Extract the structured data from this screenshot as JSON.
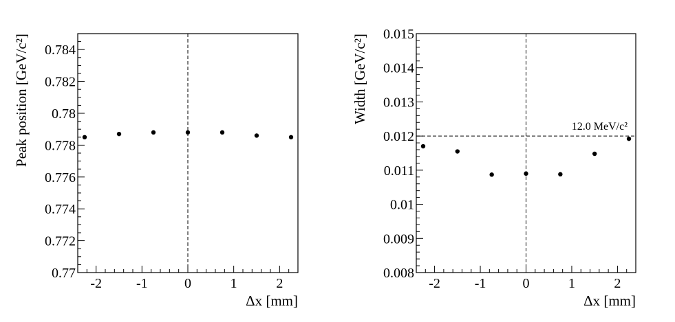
{
  "chart_data": [
    {
      "type": "scatter",
      "title": "",
      "xlabel": "Δx [mm]",
      "ylabel": "Peak position [GeV/c²]",
      "xlim": [
        -2.4,
        2.4
      ],
      "ylim": [
        0.77,
        0.785
      ],
      "x_ticks": [
        -2,
        -1,
        0,
        1,
        2
      ],
      "x_tick_labels": [
        "-2",
        "-1",
        "0",
        "1",
        "2"
      ],
      "y_ticks": [
        0.77,
        0.772,
        0.774,
        0.776,
        0.778,
        0.78,
        0.782,
        0.784
      ],
      "y_tick_labels": [
        "0.77",
        "0.772",
        "0.774",
        "0.776",
        "0.778",
        "0.78",
        "0.782",
        "0.784"
      ],
      "x_minor_step": 0.2,
      "y_minor_step": 0.0005,
      "grid": false,
      "series": [
        {
          "x": [
            -2.25,
            -1.5,
            -0.75,
            0,
            0.75,
            1.5,
            2.25
          ],
          "y": [
            0.7785,
            0.7787,
            0.7788,
            0.7788,
            0.7788,
            0.7786,
            0.7785
          ],
          "yerr": [
            3e-05,
            3e-05,
            3e-05,
            3e-05,
            3e-05,
            3e-05,
            3e-05
          ]
        }
      ],
      "reference_lines": [
        {
          "orientation": "vertical",
          "value": 0,
          "style": "dashed"
        }
      ]
    },
    {
      "type": "scatter",
      "title": "",
      "xlabel": "Δx [mm]",
      "ylabel": "Width [GeV/c²]",
      "xlim": [
        -2.4,
        2.4
      ],
      "ylim": [
        0.008,
        0.015
      ],
      "x_ticks": [
        -2,
        -1,
        0,
        1,
        2
      ],
      "x_tick_labels": [
        "-2",
        "-1",
        "0",
        "1",
        "2"
      ],
      "y_ticks": [
        0.008,
        0.009,
        0.01,
        0.011,
        0.012,
        0.013,
        0.014,
        0.015
      ],
      "y_tick_labels": [
        "0.008",
        "0.009",
        "0.01",
        "0.011",
        "0.012",
        "0.013",
        "0.014",
        "0.015"
      ],
      "x_minor_step": 0.2,
      "y_minor_step": 0.0002,
      "grid": false,
      "series": [
        {
          "x": [
            -2.25,
            -1.5,
            -0.75,
            0,
            0.75,
            1.5,
            2.25
          ],
          "y": [
            0.0117,
            0.01155,
            0.01087,
            0.0109,
            0.01088,
            0.01148,
            0.01192
          ],
          "yerr": [
            5e-05,
            5e-05,
            4e-05,
            6e-05,
            4e-05,
            5e-05,
            6e-05
          ]
        }
      ],
      "reference_lines": [
        {
          "orientation": "vertical",
          "value": 0,
          "style": "dashed"
        },
        {
          "orientation": "horizontal",
          "value": 0.012,
          "style": "dashed",
          "label": "12.0 MeV/c²"
        }
      ]
    }
  ]
}
